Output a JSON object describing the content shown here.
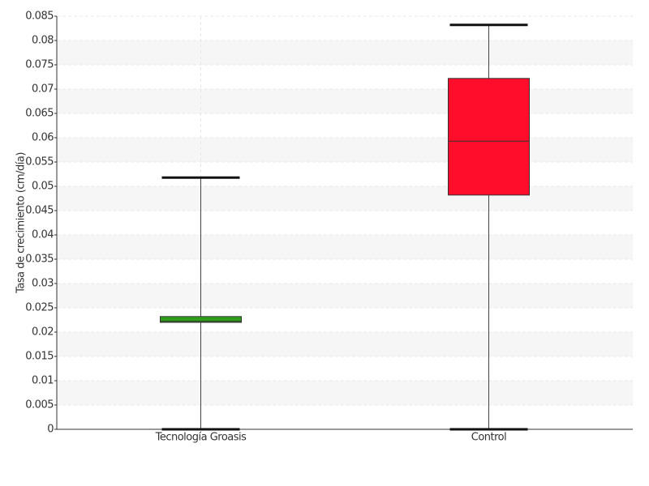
{
  "chart_data": {
    "type": "box",
    "y_label": "Tasa de crecimiento (cm/día)",
    "categories": [
      "Tecnología Groasis",
      "Control"
    ],
    "boxes": [
      {
        "min": 0,
        "q1": 0.022,
        "median": 0.0222,
        "q3": 0.0232,
        "max": 0.0518,
        "color": "#2e9e1a"
      },
      {
        "min": 0,
        "q1": 0.0482,
        "median": 0.0593,
        "q3": 0.0722,
        "max": 0.0832,
        "color": "#ff0d2a"
      }
    ],
    "ylim": [
      0,
      0.085
    ],
    "yticks": [
      0,
      0.005,
      0.01,
      0.015,
      0.02,
      0.025,
      0.03,
      0.035,
      0.04,
      0.045,
      0.05,
      0.055,
      0.06,
      0.065,
      0.07,
      0.075,
      0.08,
      0.085
    ],
    "grid": true
  }
}
